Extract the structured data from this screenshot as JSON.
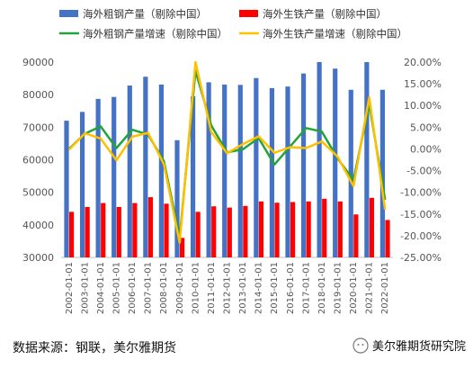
{
  "chart_data": {
    "type": "bar+line",
    "categories": [
      "2002-01-01",
      "2003-01-01",
      "2004-01-01",
      "2005-01-01",
      "2006-01-01",
      "2007-01-01",
      "2008-01-01",
      "2009-01-01",
      "2010-01-01",
      "2011-01-01",
      "2012-01-01",
      "2013-01-01",
      "2014-01-01",
      "2015-01-01",
      "2016-01-01",
      "2017-01-01",
      "2018-01-01",
      "2019-01-01",
      "2020-01-01",
      "2021-01-01",
      "2022-01-01"
    ],
    "bar_series": [
      {
        "name": "海外粗钢产量（剔除中国）",
        "color": "#4472C4",
        "values": [
          72000,
          74700,
          78700,
          79300,
          82800,
          85500,
          83100,
          66000,
          79500,
          83800,
          83100,
          83000,
          85100,
          82000,
          82500,
          86500,
          90000,
          88000,
          81500,
          90000,
          81500
        ]
      },
      {
        "name": "海外生铁产量（剔除中国）",
        "color": "#FF0000",
        "values": [
          44000,
          45500,
          46700,
          45500,
          46700,
          48500,
          46500,
          36000,
          44000,
          45700,
          45300,
          45800,
          47200,
          46800,
          47000,
          47200,
          48000,
          47200,
          43200,
          48300,
          41500
        ]
      }
    ],
    "line_series": [
      {
        "name": "海外粗钢产量增速（剔除中国）",
        "color": "#22A33C",
        "values": [
          0.0,
          3.5,
          5.2,
          0.2,
          4.4,
          3.3,
          -2.8,
          -20.5,
          18.0,
          5.4,
          -0.8,
          -0.1,
          2.5,
          -3.6,
          0.6,
          4.8,
          4.0,
          -2.2,
          -7.2,
          10.4,
          -11.7
        ]
      },
      {
        "name": "海外生铁产量增速（剔除中国）",
        "color": "#FFC000",
        "values": [
          -0.2,
          3.6,
          2.4,
          -2.6,
          2.8,
          3.7,
          -3.5,
          -21.6,
          20.0,
          3.9,
          -1.0,
          1.1,
          2.9,
          -0.9,
          0.4,
          0.2,
          1.7,
          -1.8,
          -8.6,
          11.9,
          -14.0
        ]
      }
    ],
    "y_left": {
      "min": 30000,
      "max": 90000,
      "step": 10000,
      "ticks": [
        "30000",
        "40000",
        "50000",
        "60000",
        "70000",
        "80000",
        "90000"
      ]
    },
    "y_right": {
      "min": -25,
      "max": 20,
      "step": 5,
      "ticks": [
        "-25.00%",
        "-20.00%",
        "-15.00%",
        "-10.00%",
        "-5.00%",
        "0.00%",
        "5.00%",
        "10.00%",
        "15.00%",
        "20.00%"
      ]
    },
    "legend_position": "top",
    "grid": false
  },
  "footer": {
    "source": "数据来源：钢联，美尔雅期货",
    "brand": "美尔雅期货研究院"
  }
}
